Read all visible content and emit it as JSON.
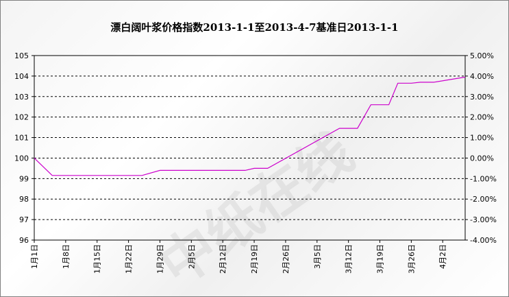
{
  "chart_data": {
    "type": "line",
    "title": "漂白阔叶浆价格指数2013-1-1至2013-4-7基准日2013-1-1",
    "watermark": "中纸在线",
    "ylim": [
      96,
      105
    ],
    "y_ticks": [
      "105",
      "104",
      "103",
      "102",
      "101",
      "100",
      "99",
      "98",
      "97",
      "96"
    ],
    "y2lim": [
      -4.0,
      5.0
    ],
    "y2_ticks": [
      "5.00%",
      "4.00%",
      "3.00%",
      "2.00%",
      "1.00%",
      "0.00%",
      "-1.00%",
      "-2.00%",
      "-3.00%",
      "-4.00%"
    ],
    "x_tick_labels": [
      "1月1日",
      "1月8日",
      "1月15日",
      "1月22日",
      "1月29日",
      "2月5日",
      "2月12日",
      "2月19日",
      "2月26日",
      "3月5日",
      "3月12日",
      "3月19日",
      "3月26日",
      "4月2日"
    ],
    "x_range_days": [
      0,
      96
    ],
    "grid": true,
    "line_color": "#cc00cc",
    "series": [
      {
        "x": [
          0,
          4,
          24,
          28,
          47,
          49,
          52,
          68,
          72,
          75,
          79,
          81,
          84,
          86,
          89,
          96
        ],
        "y": [
          100.0,
          99.15,
          99.15,
          99.4,
          99.4,
          99.5,
          99.5,
          101.45,
          101.45,
          102.6,
          102.6,
          103.65,
          103.65,
          103.7,
          103.7,
          103.95
        ]
      }
    ]
  }
}
